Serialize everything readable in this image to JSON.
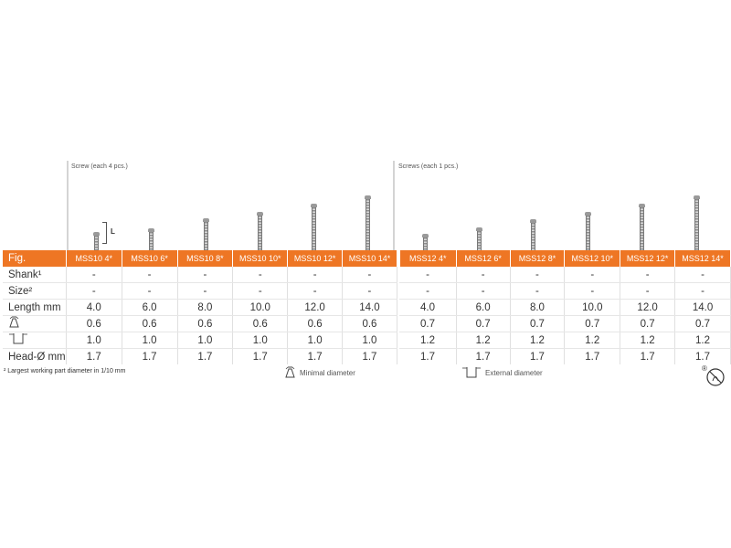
{
  "groups": [
    {
      "label": "Screw (each 4 pcs.)"
    },
    {
      "label": "Screws (each 1 pcs.)"
    }
  ],
  "length_marker": "L",
  "table": {
    "header_label": "Fig.",
    "columns": [
      "MSS10 4*",
      "MSS10 6*",
      "MSS10 8*",
      "MSS10 10*",
      "MSS10 12*",
      "MSS10 14*",
      "MSS12 4*",
      "MSS12 6*",
      "MSS12 8*",
      "MSS12 10*",
      "MSS12 12*",
      "MSS12 14*"
    ],
    "rows": [
      {
        "label": "Shank¹",
        "values": [
          "-",
          "-",
          "-",
          "-",
          "-",
          "-",
          "-",
          "-",
          "-",
          "-",
          "-",
          "-"
        ]
      },
      {
        "label": "Size²",
        "values": [
          "-",
          "-",
          "-",
          "-",
          "-",
          "-",
          "-",
          "-",
          "-",
          "-",
          "-",
          "-"
        ]
      },
      {
        "label": "Length mm",
        "values": [
          "4.0",
          "6.0",
          "8.0",
          "10.0",
          "12.0",
          "14.0",
          "4.0",
          "6.0",
          "8.0",
          "10.0",
          "12.0",
          "14.0"
        ]
      },
      {
        "label": "",
        "icon": "minimal-diameter-icon",
        "values": [
          "0.6",
          "0.6",
          "0.6",
          "0.6",
          "0.6",
          "0.6",
          "0.7",
          "0.7",
          "0.7",
          "0.7",
          "0.7",
          "0.7"
        ]
      },
      {
        "label": "",
        "icon": "external-diameter-icon",
        "values": [
          "1.0",
          "1.0",
          "1.0",
          "1.0",
          "1.0",
          "1.0",
          "1.2",
          "1.2",
          "1.2",
          "1.2",
          "1.2",
          "1.2"
        ]
      },
      {
        "label": "Head-Ø mm",
        "values": [
          "1.7",
          "1.7",
          "1.7",
          "1.7",
          "1.7",
          "1.7",
          "1.7",
          "1.7",
          "1.7",
          "1.7",
          "1.7",
          "1.7"
        ]
      }
    ]
  },
  "footnote": "² Largest working part diameter in 1/10 mm",
  "legend": {
    "minimal": "Minimal diameter",
    "external": "External diameter"
  },
  "screw_lengths_mm": [
    4,
    6,
    8,
    10,
    12,
    14,
    4,
    6,
    8,
    10,
    12,
    14
  ],
  "colors": {
    "header_bg": "#ee7624",
    "header_text": "#ffffff"
  }
}
